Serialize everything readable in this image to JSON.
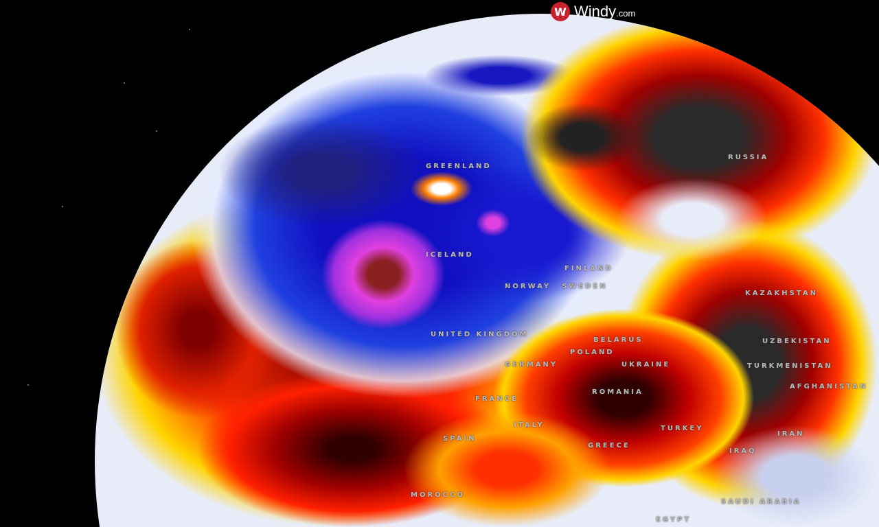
{
  "brand": {
    "name": "Windy",
    "suffix": ".com",
    "icon": "windy-logo-icon",
    "accent": "#c8232c"
  },
  "map": {
    "layer_colors": {
      "cold": "#1a1ad8",
      "extreme_cold": "#e040e0",
      "neutral": "#e8ecf8",
      "warm": "#ffd400",
      "hot": "#e82000",
      "extreme_hot": "#2a2a2a"
    },
    "labels": [
      "GREENLAND",
      "RUSSIA",
      "ICELAND",
      "FINLAND",
      "NORWAY",
      "SWEDEN",
      "UNITED KINGDOM",
      "BELARUS",
      "POLAND",
      "GERMANY",
      "UKRAINE",
      "KAZAKHSTAN",
      "UZBEKISTAN",
      "TURKMENISTAN",
      "AFGHANISTAN",
      "FRANCE",
      "ROMANIA",
      "SPAIN",
      "ITALY",
      "GREECE",
      "TURKEY",
      "IRAN",
      "IRAQ",
      "MOROCCO",
      "SAUDI ARABIA",
      "EGYPT"
    ]
  }
}
